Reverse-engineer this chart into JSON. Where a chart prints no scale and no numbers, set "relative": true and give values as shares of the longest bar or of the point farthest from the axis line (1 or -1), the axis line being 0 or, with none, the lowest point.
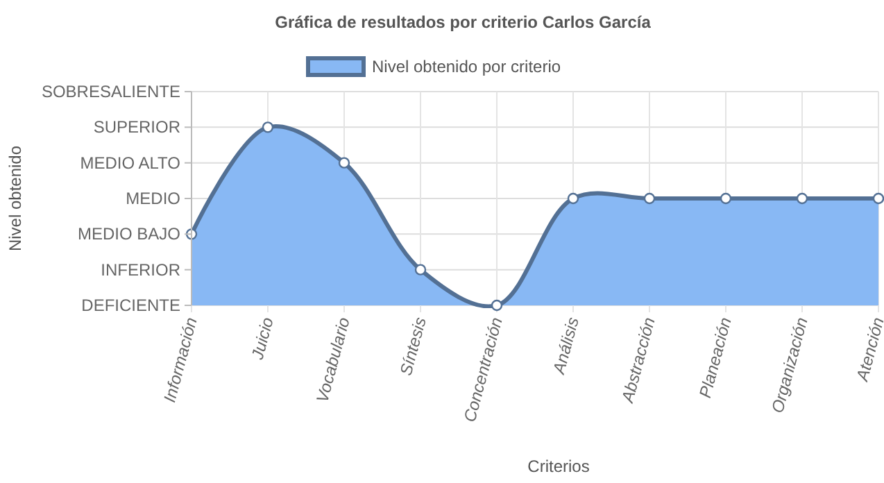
{
  "chart_data": {
    "type": "area",
    "title": "Gráfica de resultados por criterio Carlos García",
    "xlabel": "Criterios",
    "annotations": [
      "Nivel obtenido"
    ],
    "categories": [
      "Información",
      "Juicio",
      "Vocabulario",
      "Síntesis",
      "Concentración",
      "Análisis",
      "Abstracción",
      "Planeación",
      "Organización",
      "Atención"
    ],
    "series": [
      {
        "name": "Nivel obtenido por criterio",
        "color": "#88b8f4",
        "values": [
          0.4,
          1,
          0.8,
          0.2,
          0,
          0.6,
          0.6,
          0.6,
          0.6,
          0.6
        ]
      }
    ],
    "relative": true,
    "y_categories": [
      "SOBRESALIENTE",
      "SUPERIOR",
      "MEDIO ALTO",
      "MEDIO",
      "MEDIO BAJO",
      "INFERIOR",
      "DEFICIENTE"
    ],
    "grid": true,
    "legend": "top",
    "marker": "circle",
    "line_style": "solid"
  }
}
